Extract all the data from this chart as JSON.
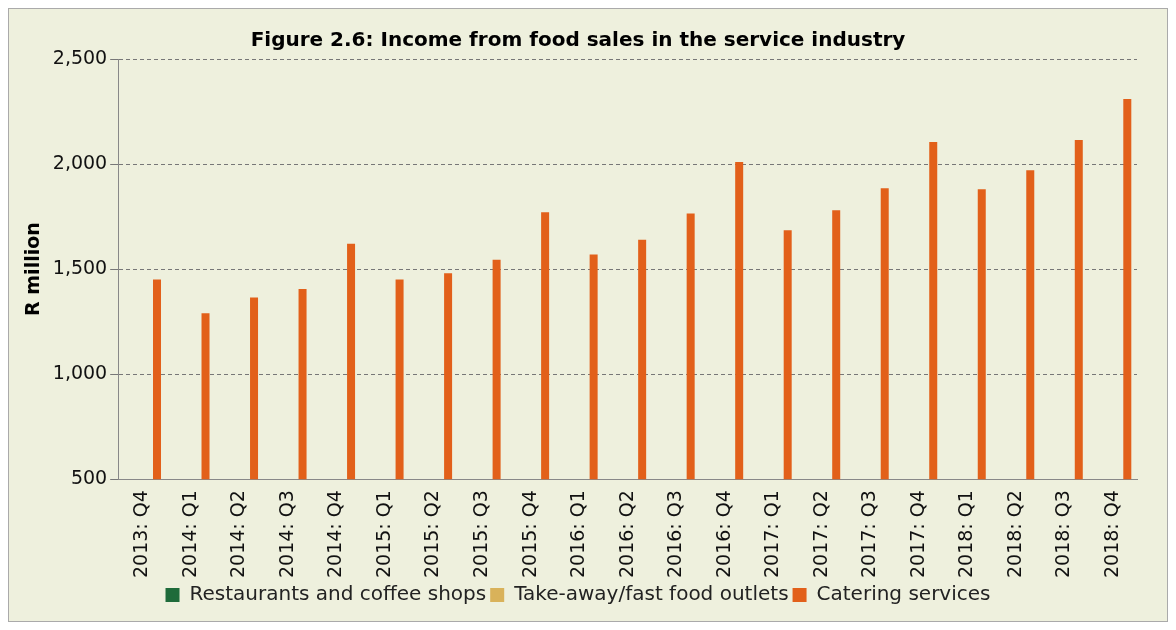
{
  "chart_data": {
    "type": "bar",
    "title": "Figure 2.6: Income from food sales in the service industry",
    "ylabel": "R million",
    "categories": [
      "2013: Q4",
      "2014: Q1",
      "2014: Q2",
      "2014: Q3",
      "2014: Q4",
      "2015: Q1",
      "2015: Q2",
      "2015: Q3",
      "2015: Q4",
      "2016: Q1",
      "2016: Q2",
      "2016: Q3",
      "2016: Q4",
      "2017: Q1",
      "2017: Q2",
      "2017: Q3",
      "2017: Q4",
      "2018: Q1",
      "2018: Q2",
      "2018: Q3",
      "2018: Q4"
    ],
    "series": [
      {
        "name": "Restaurants and coffee shops",
        "color": "#1e6b3a",
        "values": [
          null,
          null,
          null,
          null,
          null,
          null,
          null,
          null,
          null,
          null,
          null,
          null,
          null,
          null,
          null,
          null,
          null,
          null,
          null,
          null,
          null
        ]
      },
      {
        "name": "Take-away/fast food outlets",
        "color": "#d9b25a",
        "values": [
          null,
          null,
          null,
          null,
          null,
          null,
          null,
          null,
          null,
          null,
          null,
          null,
          null,
          null,
          null,
          null,
          null,
          null,
          null,
          null,
          null
        ]
      },
      {
        "name": "Catering services",
        "color": "#e2601a",
        "values": [
          1450,
          1290,
          1365,
          1405,
          1620,
          1450,
          1480,
          1545,
          1770,
          1570,
          1640,
          1765,
          2010,
          1685,
          1780,
          1885,
          2105,
          1880,
          1970,
          2115,
          2310
        ]
      }
    ],
    "ylim": [
      500,
      2500
    ],
    "yticks": [
      {
        "value": 500,
        "label": "500"
      },
      {
        "value": 1000,
        "label": "1,000"
      },
      {
        "value": 1500,
        "label": "1,500"
      },
      {
        "value": 2000,
        "label": "2,000"
      },
      {
        "value": 2500,
        "label": "2,500"
      }
    ],
    "grid": "y",
    "legend": "bottom"
  }
}
